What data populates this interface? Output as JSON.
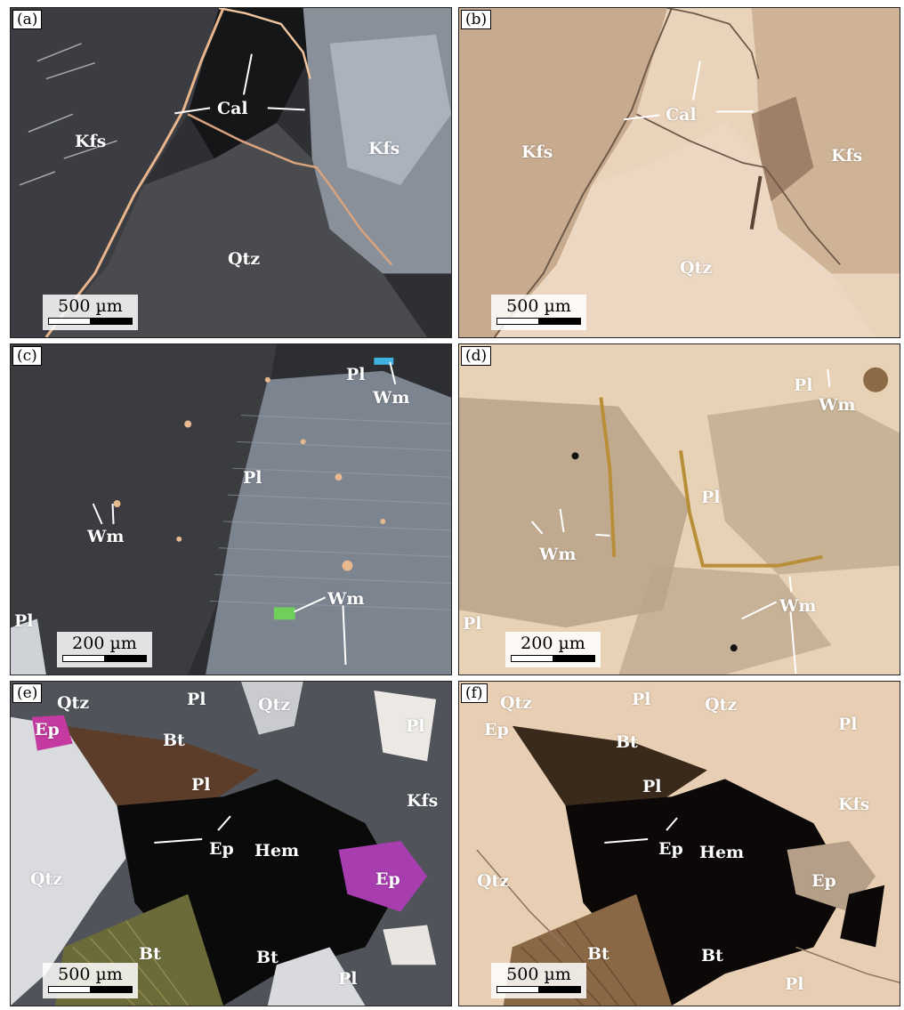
{
  "panels": [
    {
      "letter": "(a)",
      "scale": "500 µm",
      "labels": [
        "Kfs",
        "Cal",
        "Kfs",
        "Qtz"
      ]
    },
    {
      "letter": "(b)",
      "scale": "500 µm",
      "labels": [
        "Kfs",
        "Cal",
        "Kfs",
        "Qtz"
      ]
    },
    {
      "letter": "(c)",
      "scale": "200 µm",
      "labels": [
        "Pl",
        "Wm",
        "Pl",
        "Wm",
        "Wm",
        "Pl"
      ]
    },
    {
      "letter": "(d)",
      "scale": "200 µm",
      "labels": [
        "Pl",
        "Wm",
        "Pl",
        "Wm",
        "Wm",
        "Pl"
      ]
    },
    {
      "letter": "(e)",
      "scale": "500 µm",
      "labels": [
        "Qtz",
        "Pl",
        "Qtz",
        "Pl",
        "Ep",
        "Bt",
        "Pl",
        "Kfs",
        "Ep",
        "Hem",
        "Ep",
        "Qtz",
        "Bt",
        "Bt",
        "Pl"
      ]
    },
    {
      "letter": "(f)",
      "scale": "500 µm",
      "labels": [
        "Qtz",
        "Pl",
        "Qtz",
        "Pl",
        "Ep",
        "Bt",
        "Pl",
        "Kfs",
        "Ep",
        "Hem",
        "Ep",
        "Qtz",
        "Bt",
        "Bt",
        "Pl"
      ]
    }
  ],
  "colors": {
    "xpl_dark": "#2a2b2e",
    "ppl_base": "#e6cdb3",
    "label": "#ffffff"
  }
}
